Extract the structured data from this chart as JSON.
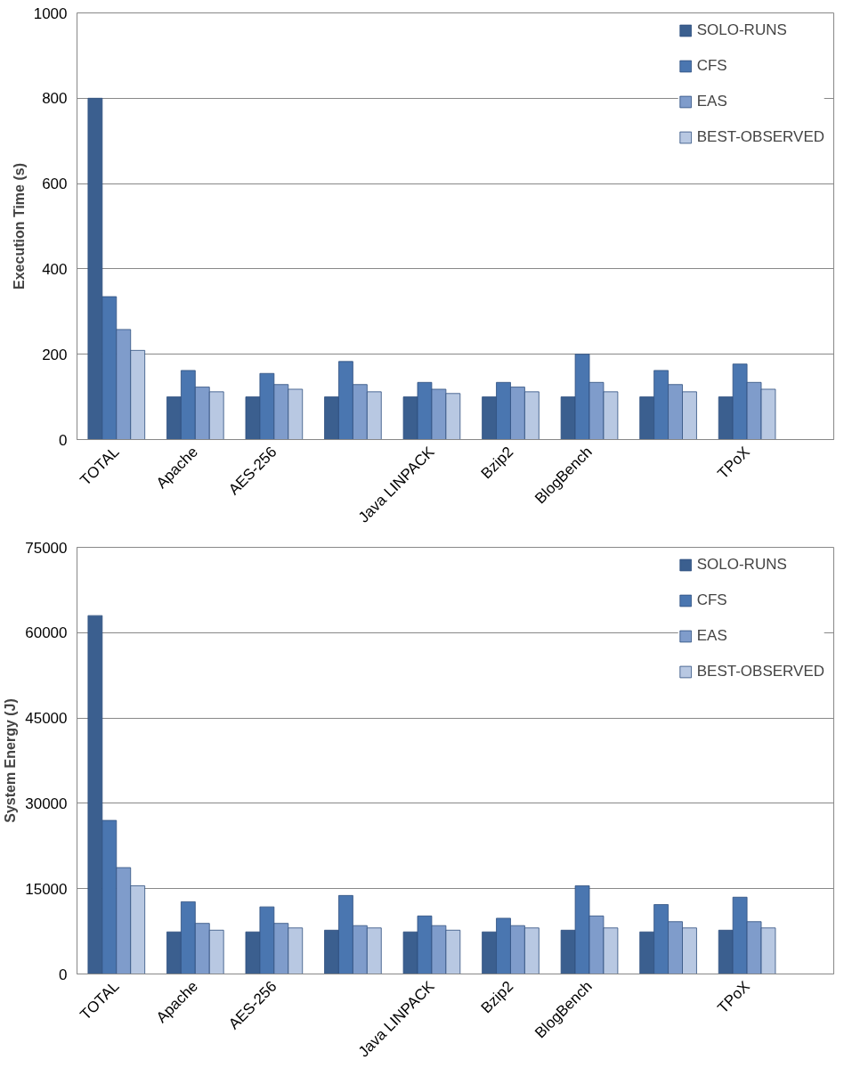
{
  "chart_data": [
    {
      "type": "bar",
      "ylabel": "Execution Time (s)",
      "categories": [
        "TOTAL",
        "Apache",
        "AES-256",
        null,
        "Java LINPACK",
        "Bzip2",
        "BlogBench",
        null,
        "TPoX"
      ],
      "ylim": [
        0,
        1000
      ],
      "yticks": [
        0,
        200,
        400,
        600,
        800,
        1000
      ],
      "grid": "y",
      "legend": "top right",
      "series": [
        {
          "name": "SOLO-RUNS",
          "color": "#3b5f8f",
          "values": [
            800,
            100,
            100,
            100,
            100,
            100,
            100,
            100,
            100
          ]
        },
        {
          "name": "CFS",
          "color": "#4a76b0",
          "values": [
            335,
            162,
            155,
            183,
            134,
            134,
            200,
            162,
            177
          ]
        },
        {
          "name": "EAS",
          "color": "#7f9ccb",
          "values": [
            258,
            123,
            129,
            129,
            118,
            123,
            134,
            129,
            134
          ]
        },
        {
          "name": "BEST-OBSERVED",
          "color": "#b8c8e2",
          "values": [
            209,
            112,
            118,
            112,
            108,
            112,
            112,
            112,
            118
          ]
        }
      ]
    },
    {
      "type": "bar",
      "ylabel": "System Energy (J)",
      "categories": [
        "TOTAL",
        "Apache",
        "AES-256",
        null,
        "Java LINPACK",
        "Bzip2",
        "BlogBench",
        null,
        "TPoX"
      ],
      "ylim": [
        0,
        75000
      ],
      "yticks": [
        0,
        15000,
        30000,
        45000,
        60000,
        75000
      ],
      "grid": "y",
      "legend": "top right",
      "series": [
        {
          "name": "SOLO-RUNS",
          "color": "#3b5f8f",
          "values": [
            63000,
            7400,
            7400,
            7700,
            7400,
            7400,
            7700,
            7400,
            7700
          ]
        },
        {
          "name": "CFS",
          "color": "#4a76b0",
          "values": [
            27000,
            12700,
            11800,
            13800,
            10200,
            9800,
            15500,
            12200,
            13500
          ]
        },
        {
          "name": "EAS",
          "color": "#7f9ccb",
          "values": [
            18700,
            8900,
            8900,
            8500,
            8500,
            8500,
            10200,
            9200,
            9200
          ]
        },
        {
          "name": "BEST-OBSERVED",
          "color": "#b8c8e2",
          "values": [
            15500,
            7700,
            8100,
            8100,
            7700,
            8100,
            8100,
            8100,
            8100
          ]
        }
      ]
    }
  ]
}
